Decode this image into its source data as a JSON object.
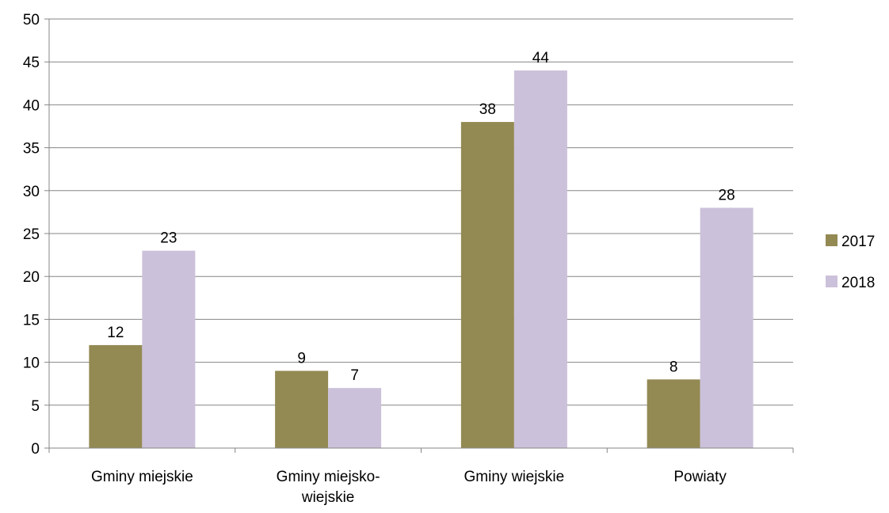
{
  "chart_data": {
    "type": "bar",
    "title": "",
    "xlabel": "",
    "ylabel": "",
    "categories": [
      [
        "Gminy miejskie"
      ],
      [
        "Gminy miejsko-",
        "wiejskie"
      ],
      [
        "Gminy wiejskie"
      ],
      [
        "Powiaty"
      ]
    ],
    "series": [
      {
        "name": "2017",
        "color": "#938953",
        "values": [
          12,
          9,
          38,
          8
        ]
      },
      {
        "name": "2018",
        "color": "#ccc1da",
        "values": [
          23,
          7,
          44,
          28
        ]
      }
    ],
    "ylim": [
      0,
      50
    ],
    "yticks": [
      0,
      5,
      10,
      15,
      20,
      25,
      30,
      35,
      40,
      45,
      50
    ],
    "grid": true,
    "legend_position": "right",
    "data_labels": true
  }
}
